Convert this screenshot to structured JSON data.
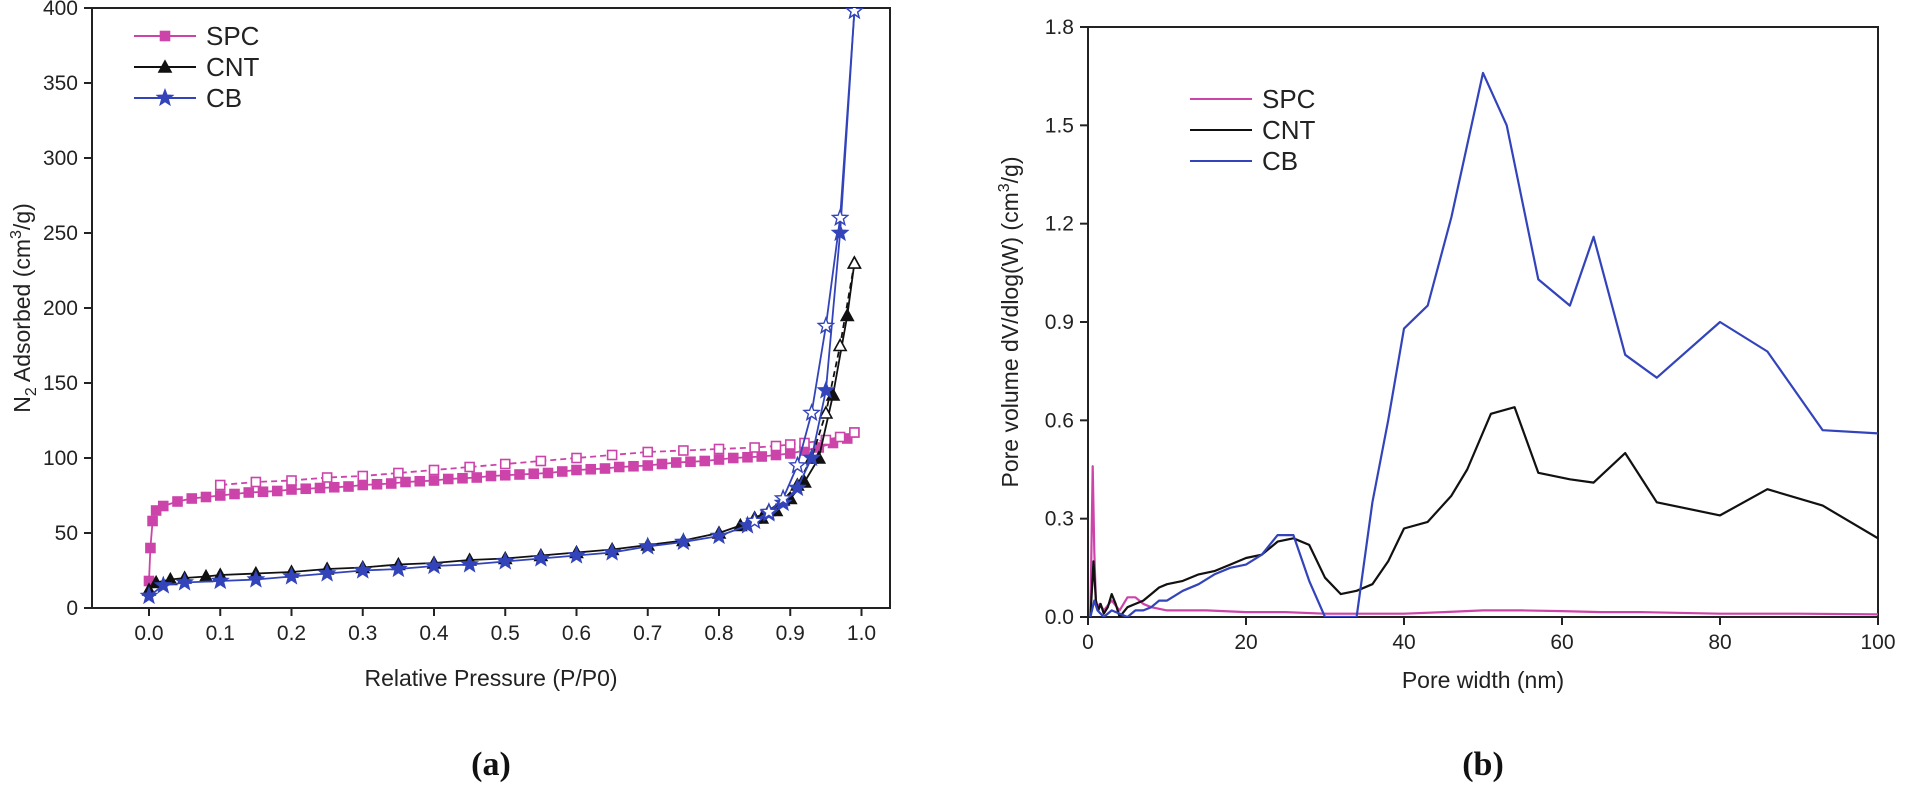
{
  "colors": {
    "spc": "#cc44aa",
    "cnt": "#111111",
    "cb": "#3344bb"
  },
  "chart_data": [
    {
      "type": "line",
      "panel_label": "(a)",
      "xlabel": "Relative Pressure (P/P0)",
      "ylabel_pre": "N",
      "ylabel_sub": "2",
      "ylabel_mid": " Adsorbed (cm",
      "ylabel_sup": "3",
      "ylabel_post": "/g)",
      "xlim": [
        -0.08,
        1.04
      ],
      "ylim": [
        0,
        400
      ],
      "xticks": [
        "0.0",
        "0.1",
        "0.2",
        "0.3",
        "0.4",
        "0.5",
        "0.6",
        "0.7",
        "0.8",
        "0.9",
        "1.0"
      ],
      "xtick_values": [
        0,
        0.1,
        0.2,
        0.3,
        0.4,
        0.5,
        0.6,
        0.7,
        0.8,
        0.9,
        1.0
      ],
      "yticks": [
        "0",
        "50",
        "100",
        "150",
        "200",
        "250",
        "300",
        "350",
        "400"
      ],
      "ytick_values": [
        0,
        50,
        100,
        150,
        200,
        250,
        300,
        350,
        400
      ],
      "legend_position": "top-left",
      "series": [
        {
          "name": "SPC",
          "key": "spc",
          "marker": "square",
          "style": "solid",
          "x": [
            0.0,
            0.002,
            0.005,
            0.01,
            0.02,
            0.04,
            0.06,
            0.08,
            0.1,
            0.12,
            0.14,
            0.16,
            0.18,
            0.2,
            0.22,
            0.24,
            0.26,
            0.28,
            0.3,
            0.32,
            0.34,
            0.36,
            0.38,
            0.4,
            0.42,
            0.44,
            0.46,
            0.48,
            0.5,
            0.52,
            0.54,
            0.56,
            0.58,
            0.6,
            0.62,
            0.64,
            0.66,
            0.68,
            0.7,
            0.72,
            0.74,
            0.76,
            0.78,
            0.8,
            0.82,
            0.84,
            0.86,
            0.88,
            0.9,
            0.92,
            0.94,
            0.96,
            0.98,
            0.99
          ],
          "y": [
            18,
            40,
            58,
            65,
            68,
            71,
            73,
            74,
            75,
            76,
            77,
            77.5,
            78,
            79,
            79.5,
            80,
            80.5,
            81,
            82,
            82.5,
            83,
            84,
            84.5,
            85,
            86,
            86.5,
            87,
            88,
            88.5,
            89,
            89.5,
            90,
            91,
            92,
            92.5,
            93,
            94,
            94.5,
            95,
            96,
            97,
            97.5,
            98,
            99,
            100,
            100.5,
            101,
            102,
            103,
            105,
            107,
            110,
            113,
            117
          ]
        },
        {
          "name": "SPC desorption",
          "key": "spc",
          "marker": "open-square",
          "style": "dash",
          "legend": false,
          "x": [
            0.99,
            0.97,
            0.95,
            0.92,
            0.9,
            0.88,
            0.85,
            0.8,
            0.75,
            0.7,
            0.65,
            0.6,
            0.55,
            0.5,
            0.45,
            0.4,
            0.35,
            0.3,
            0.25,
            0.2,
            0.15,
            0.1
          ],
          "y": [
            117,
            114,
            112,
            110,
            109,
            108,
            107,
            106,
            105,
            104,
            102,
            100,
            98,
            96,
            94,
            92,
            90,
            88,
            87,
            85,
            84,
            82
          ]
        },
        {
          "name": "CNT",
          "key": "cnt",
          "marker": "triangle",
          "style": "solid",
          "x": [
            0.0,
            0.01,
            0.03,
            0.05,
            0.08,
            0.1,
            0.15,
            0.2,
            0.25,
            0.3,
            0.35,
            0.4,
            0.45,
            0.5,
            0.55,
            0.6,
            0.65,
            0.7,
            0.75,
            0.8,
            0.83,
            0.86,
            0.88,
            0.9,
            0.92,
            0.94,
            0.96,
            0.98,
            0.99
          ],
          "y": [
            12,
            17,
            19,
            20,
            21,
            22,
            23,
            24,
            26,
            27,
            29,
            30,
            32,
            33,
            35,
            37,
            39,
            42,
            45,
            50,
            55,
            60,
            65,
            73,
            84,
            100,
            142,
            195,
            230
          ]
        },
        {
          "name": "CNT desorption",
          "key": "cnt",
          "marker": "open-triangle",
          "style": "dash",
          "legend": false,
          "x": [
            0.99,
            0.97,
            0.95,
            0.93,
            0.91,
            0.89,
            0.87,
            0.85
          ],
          "y": [
            230,
            175,
            130,
            100,
            82,
            72,
            65,
            60
          ]
        },
        {
          "name": "CB",
          "key": "cb",
          "marker": "star",
          "style": "solid",
          "x": [
            0.0,
            0.02,
            0.05,
            0.1,
            0.15,
            0.2,
            0.25,
            0.3,
            0.35,
            0.4,
            0.45,
            0.5,
            0.55,
            0.6,
            0.65,
            0.7,
            0.75,
            0.8,
            0.84,
            0.87,
            0.89,
            0.91,
            0.93,
            0.95,
            0.97,
            0.99
          ],
          "y": [
            8,
            15,
            17,
            18,
            19,
            21,
            23,
            25,
            26,
            28,
            29,
            31,
            33,
            35,
            37,
            41,
            44,
            48,
            55,
            63,
            70,
            80,
            100,
            145,
            250,
            398
          ]
        },
        {
          "name": "CB desorption",
          "key": "cb",
          "marker": "open-star",
          "style": "solid",
          "legend": false,
          "x": [
            0.99,
            0.97,
            0.95,
            0.93,
            0.91,
            0.89,
            0.87,
            0.85
          ],
          "y": [
            398,
            260,
            188,
            130,
            95,
            73,
            64,
            58
          ]
        }
      ]
    },
    {
      "type": "line",
      "panel_label": "(b)",
      "xlabel": "Pore width (nm)",
      "ylabel_pre": "Pore volume dV/dlog(W) (cm",
      "ylabel_sup": "3",
      "ylabel_post": "/g)",
      "xlim": [
        0,
        100
      ],
      "ylim": [
        0,
        1.8
      ],
      "xticks": [
        "0",
        "20",
        "40",
        "60",
        "80",
        "100"
      ],
      "xtick_values": [
        0,
        20,
        40,
        60,
        80,
        100
      ],
      "yticks": [
        "0.0",
        "0.3",
        "0.6",
        "0.9",
        "1.2",
        "1.5",
        "1.8"
      ],
      "ytick_values": [
        0,
        0.3,
        0.6,
        0.9,
        1.2,
        1.5,
        1.8
      ],
      "legend_position": "top-left",
      "series": [
        {
          "name": "SPC",
          "key": "spc",
          "x": [
            0.3,
            0.6,
            0.8,
            1.0,
            1.2,
            1.5,
            2,
            3,
            4,
            5,
            6,
            7,
            8,
            10,
            15,
            20,
            25,
            30,
            35,
            40,
            45,
            50,
            55,
            60,
            65,
            70,
            80,
            90,
            100
          ],
          "y": [
            0.0,
            0.46,
            0.2,
            0.05,
            0.03,
            0.04,
            0.02,
            0.05,
            0.02,
            0.06,
            0.06,
            0.04,
            0.03,
            0.02,
            0.02,
            0.015,
            0.015,
            0.01,
            0.01,
            0.01,
            0.015,
            0.02,
            0.02,
            0.018,
            0.015,
            0.015,
            0.01,
            0.01,
            0.008
          ]
        },
        {
          "name": "CNT",
          "key": "cnt",
          "x": [
            0.3,
            0.7,
            1.0,
            1.3,
            1.6,
            2.0,
            2.5,
            3.0,
            3.5,
            4,
            5,
            6,
            7,
            8,
            9,
            10,
            12,
            14,
            16,
            18,
            20,
            22,
            24,
            26,
            28,
            30,
            32,
            34,
            36,
            38,
            40,
            43,
            46,
            48,
            51,
            54,
            57,
            61,
            64,
            68,
            72,
            80,
            86,
            93,
            100
          ],
          "y": [
            0.0,
            0.17,
            0.05,
            0.02,
            0.04,
            0.01,
            0.03,
            0.07,
            0.04,
            0.0,
            0.03,
            0.04,
            0.05,
            0.07,
            0.09,
            0.1,
            0.11,
            0.13,
            0.14,
            0.16,
            0.18,
            0.19,
            0.23,
            0.24,
            0.22,
            0.12,
            0.07,
            0.08,
            0.1,
            0.17,
            0.27,
            0.29,
            0.37,
            0.45,
            0.62,
            0.64,
            0.44,
            0.42,
            0.41,
            0.5,
            0.35,
            0.31,
            0.39,
            0.34,
            0.24
          ]
        },
        {
          "name": "CB",
          "key": "cb",
          "x": [
            0.3,
            0.8,
            1.2,
            2,
            3,
            4,
            5,
            6,
            7,
            8,
            9,
            10,
            12,
            14,
            16,
            18,
            20,
            22,
            24,
            26,
            28,
            30,
            32,
            34,
            36,
            38,
            40,
            43,
            46,
            50,
            53,
            57,
            61,
            64,
            68,
            72,
            80,
            86,
            93,
            100
          ],
          "y": [
            0.0,
            0.05,
            0.02,
            0.0,
            0.02,
            0.01,
            0.0,
            0.02,
            0.02,
            0.03,
            0.05,
            0.05,
            0.08,
            0.1,
            0.13,
            0.15,
            0.16,
            0.19,
            0.25,
            0.25,
            0.11,
            0.0,
            0.0,
            0.0,
            0.35,
            0.6,
            0.88,
            0.95,
            1.22,
            1.66,
            1.5,
            1.03,
            0.95,
            1.16,
            0.8,
            0.73,
            0.9,
            0.81,
            0.57,
            0.56
          ]
        }
      ]
    }
  ]
}
